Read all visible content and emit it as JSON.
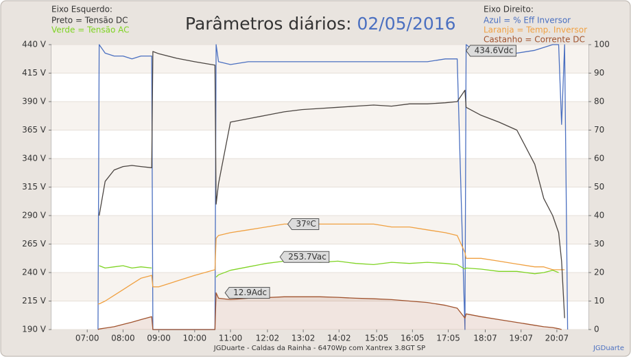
{
  "chart_data": {
    "type": "line",
    "title": "Parâmetros diários:",
    "date": "02/05/2016",
    "subtitle": "JGDuarte  -  Caldas da Rainha  -  6470Wp com Xantrex 3.8GT SP",
    "credit": "JGDuarte",
    "legend_left_title": "Eixo Esquerdo:",
    "legend_right_title": "Eixo Direito:",
    "grid": true,
    "xlim": [
      "06:00",
      "21:00"
    ],
    "xticks": [
      "07:00",
      "08:00",
      "09:00",
      "10:00",
      "11:00",
      "12:02",
      "13:02",
      "14:02",
      "15:05",
      "16:05",
      "17:05",
      "18:07",
      "19:07",
      "20:07"
    ],
    "ylim": [
      190,
      440
    ],
    "yticks": [
      {
        "value": 190,
        "label": "190 V"
      },
      {
        "value": 215,
        "label": "215 V"
      },
      {
        "value": 240,
        "label": "240 V"
      },
      {
        "value": 265,
        "label": "265 V"
      },
      {
        "value": 290,
        "label": "290 V"
      },
      {
        "value": 315,
        "label": "315 V"
      },
      {
        "value": 340,
        "label": "340 V"
      },
      {
        "value": 365,
        "label": "365 V"
      },
      {
        "value": 390,
        "label": "390 V"
      },
      {
        "value": 415,
        "label": "415 V"
      },
      {
        "value": 440,
        "label": "440 V"
      }
    ],
    "y2lim": [
      0,
      100
    ],
    "y2ticks": [
      0,
      10,
      20,
      30,
      40,
      50,
      60,
      70,
      80,
      90,
      100
    ],
    "x": [
      "07:18",
      "07:20",
      "07:30",
      "07:45",
      "08:00",
      "08:15",
      "08:30",
      "08:48",
      "08:50",
      "09:00",
      "09:30",
      "10:00",
      "10:34",
      "10:36",
      "10:40",
      "11:00",
      "11:30",
      "12:00",
      "12:30",
      "13:00",
      "13:30",
      "14:00",
      "14:30",
      "15:00",
      "15:30",
      "16:00",
      "16:30",
      "17:00",
      "17:20",
      "17:33",
      "17:35",
      "18:00",
      "18:30",
      "19:00",
      "19:30",
      "19:45",
      "20:00",
      "20:10",
      "20:15",
      "20:20",
      "20:25"
    ],
    "series": [
      {
        "name": "Azul = % Eff Inversor",
        "color": "#4a6fc0",
        "axis": "y2",
        "legend": "right",
        "values": [
          0,
          100,
          97,
          96,
          96,
          95,
          96,
          96,
          0,
          0,
          0,
          0,
          0,
          100,
          94,
          93,
          94,
          94,
          94,
          94,
          94,
          94,
          94,
          94,
          94,
          94,
          94,
          95,
          95,
          0,
          100,
          96,
          96,
          97,
          98,
          99,
          100,
          100,
          72,
          100,
          0
        ]
      },
      {
        "name": "Laranja = Temp. Inversor",
        "color": "#f0a040",
        "axis": "y2",
        "legend": "right",
        "values": [
          9,
          9,
          10,
          12,
          14,
          16,
          18,
          19,
          15,
          15,
          17,
          19,
          21,
          32,
          33,
          34,
          35,
          36,
          37,
          37,
          37,
          37,
          37,
          37,
          36,
          36,
          35,
          34,
          33,
          27,
          25,
          25,
          24,
          23,
          22,
          22,
          21,
          21,
          21,
          21,
          null
        ]
      },
      {
        "name": "Castanho = Corrente DC",
        "color": "#a0522d",
        "axis": "y2",
        "legend": "right",
        "fill": true,
        "values": [
          0,
          0.2,
          0.5,
          1,
          1.8,
          2.6,
          3.5,
          4.5,
          0,
          0,
          0,
          0,
          0,
          12.9,
          11,
          10.5,
          11,
          11.2,
          11.5,
          11.5,
          11.5,
          11.3,
          11,
          10.8,
          10.5,
          10,
          9.5,
          8.5,
          7.5,
          4,
          5.5,
          4.5,
          3.5,
          2.5,
          1.5,
          1,
          0.7,
          0.3,
          0,
          null,
          null
        ]
      },
      {
        "name": "Preto = Tensão DC",
        "color": "#4a4440",
        "axis": "y",
        "legend": "left",
        "values": [
          null,
          290,
          320,
          330,
          333,
          334,
          333,
          332,
          434,
          432,
          428,
          425,
          422,
          300,
          318,
          372,
          375,
          378,
          381,
          383,
          384,
          385,
          386,
          387,
          386,
          388,
          388,
          389,
          390,
          400,
          385,
          378,
          372,
          365,
          335,
          305,
          290,
          275,
          250,
          200,
          null
        ]
      },
      {
        "name": "Verde = Tensão AC",
        "color": "#7ed321",
        "axis": "y",
        "legend": "left",
        "values": [
          null,
          246,
          244,
          245,
          246,
          244,
          245,
          244,
          null,
          null,
          null,
          null,
          null,
          236,
          238,
          242,
          245,
          248,
          250,
          250,
          249,
          250,
          248,
          247,
          249,
          248,
          249,
          248,
          247,
          243,
          244,
          243,
          241,
          241,
          239,
          240,
          242,
          240,
          null,
          null,
          null
        ]
      }
    ],
    "annotations": [
      {
        "text": "434.6Vdc",
        "x": "17:35",
        "y": 434.6,
        "axis": "y"
      },
      {
        "text": "37ºC",
        "x": "12:36",
        "y": 37,
        "axis": "y2"
      },
      {
        "text": "253.7Vac",
        "x": "12:23",
        "y": 253.7,
        "axis": "y"
      },
      {
        "text": "12.9Adc",
        "x": "10:51",
        "y": 12.9,
        "axis": "y2"
      }
    ]
  }
}
